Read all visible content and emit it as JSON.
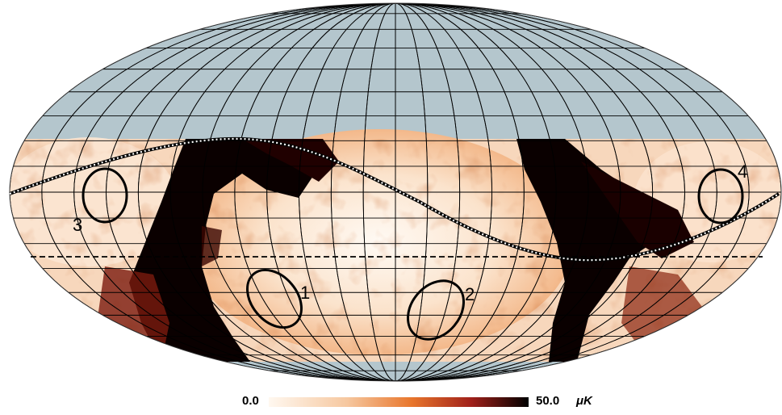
{
  "map": {
    "projection": "mollweide",
    "masked_color": "#b4c6cd",
    "graticule_color": "#000000",
    "colorscale": [
      "#fff8f0",
      "#f6c8a0",
      "#e8762c",
      "#a0201a",
      "#000000"
    ]
  },
  "regions": [
    {
      "label": "1"
    },
    {
      "label": "2"
    },
    {
      "label": "3"
    },
    {
      "label": "4"
    }
  ],
  "colorbar": {
    "min_label": "0.0",
    "max_label": "50.0",
    "unit": "μK"
  }
}
